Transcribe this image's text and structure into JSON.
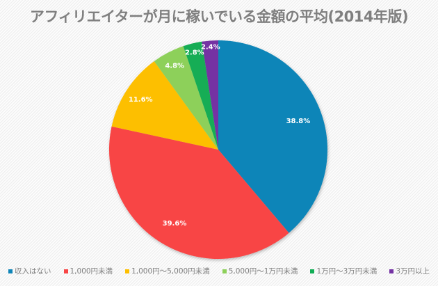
{
  "chart_data": {
    "type": "pie",
    "title": "アフィリエイターが月に稼いでいる金額の平均(2014年版)",
    "start_angle": "12 o'clock",
    "direction": "clockwise",
    "legend_position": "bottom",
    "slices": [
      {
        "label": "収入はない",
        "value": 38.8,
        "value_label": "38.8%",
        "color": "#0f85b8"
      },
      {
        "label": "1,000円未満",
        "value": 39.6,
        "value_label": "39.6%",
        "color": "#f84545"
      },
      {
        "label": "1,000円〜5,000円未満",
        "value": 11.6,
        "value_label": "11.6%",
        "color": "#fdbf00"
      },
      {
        "label": "5,000円〜1万円未満",
        "value": 4.8,
        "value_label": "4.8%",
        "color": "#8dd05a"
      },
      {
        "label": "1万円〜3万円未満",
        "value": 2.8,
        "value_label": "2.8%",
        "color": "#12ad55"
      },
      {
        "label": "3万円以上",
        "value": 2.4,
        "value_label": "2.4%",
        "color": "#7432a3"
      }
    ]
  }
}
